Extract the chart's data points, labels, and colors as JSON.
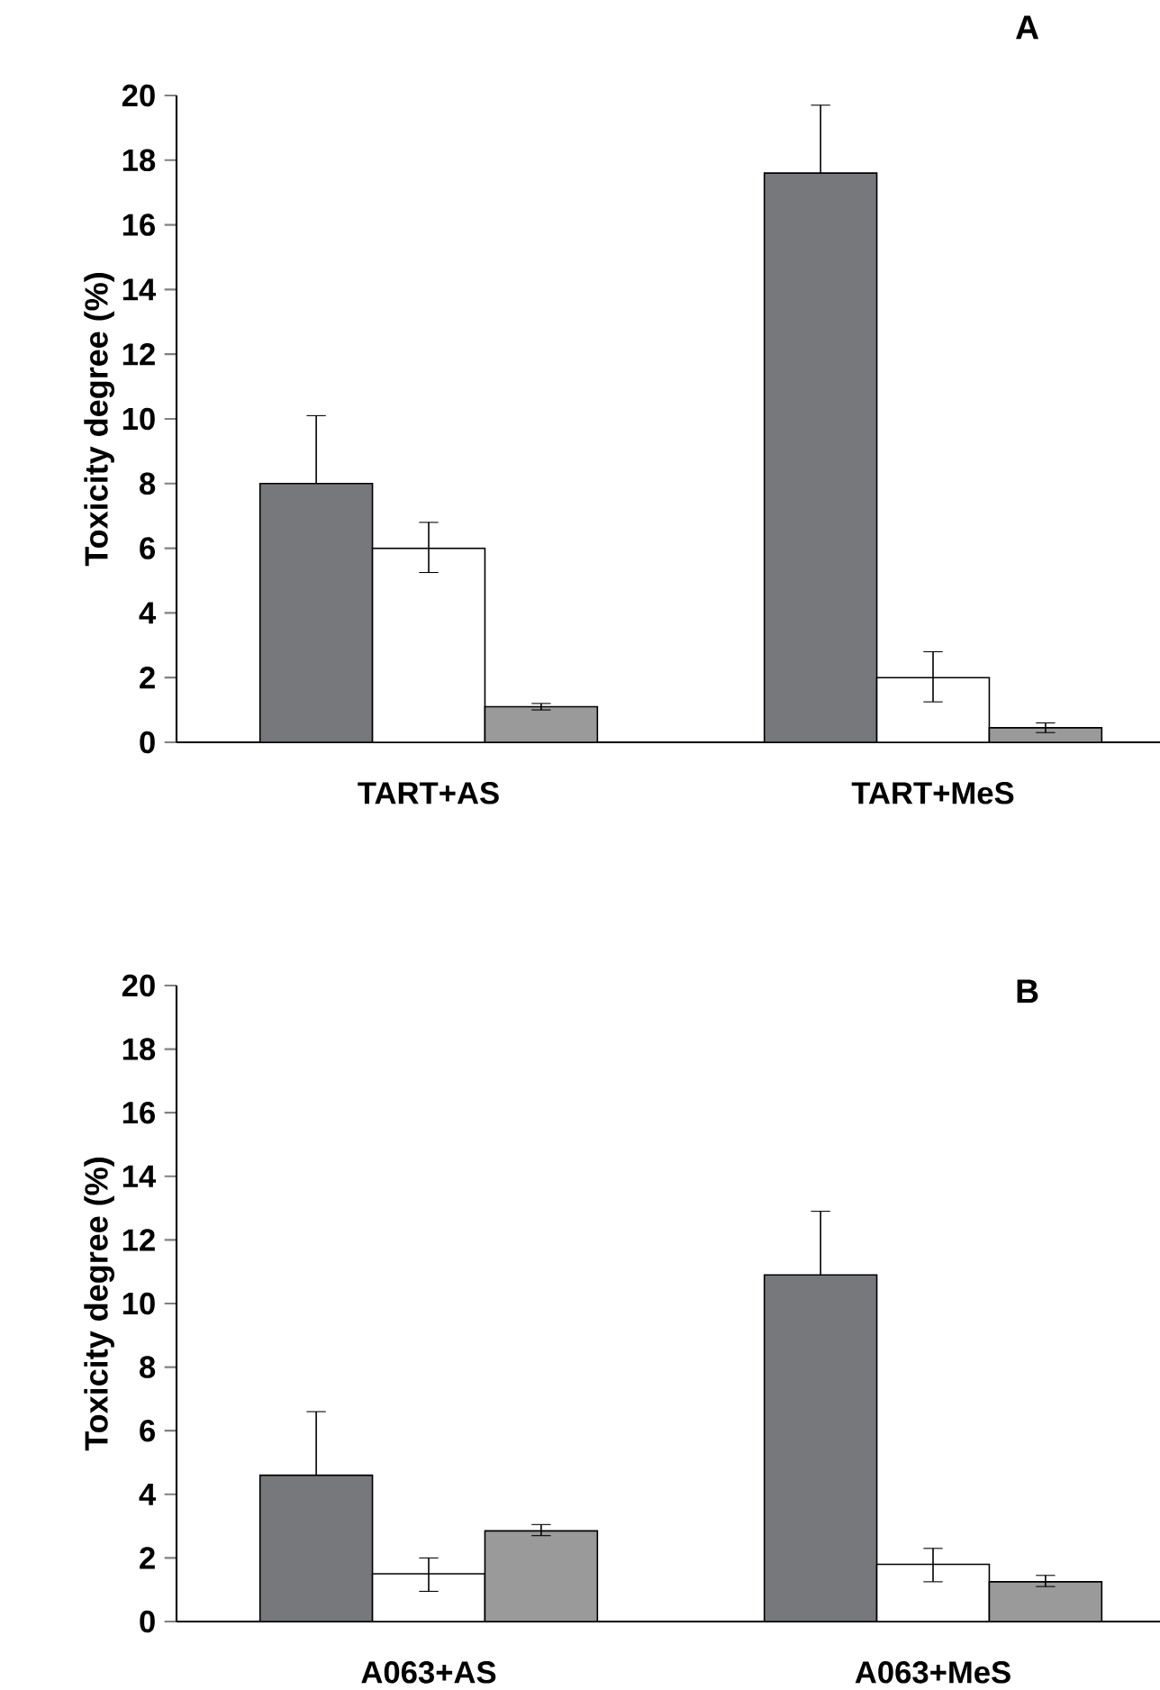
{
  "chart_data": [
    {
      "type": "bar",
      "title": "A",
      "ylabel": "Toxicity degree (%)",
      "categories": [
        "TART+AS",
        "TART+MeS"
      ],
      "ylim": [
        0,
        20
      ],
      "yticks": [
        0,
        2,
        4,
        6,
        8,
        10,
        12,
        14,
        16,
        18,
        20
      ],
      "series": [
        {
          "color": "#77787b",
          "values": [
            8.0,
            17.6
          ],
          "errors": [
            [
              8.0,
              10.1
            ],
            [
              17.6,
              19.7
            ]
          ]
        },
        {
          "color": "#ffffff",
          "values": [
            6.0,
            2.0
          ],
          "errors": [
            [
              5.25,
              6.8
            ],
            [
              1.25,
              2.8
            ]
          ]
        },
        {
          "color": "#9a9a9a",
          "values": [
            1.1,
            0.45
          ],
          "errors": [
            [
              1.0,
              1.2
            ],
            [
              0.3,
              0.6
            ]
          ]
        }
      ]
    },
    {
      "type": "bar",
      "title": "B",
      "ylabel": "Toxicity degree (%)",
      "categories": [
        "A063+AS",
        "A063+MeS"
      ],
      "ylim": [
        0,
        20
      ],
      "yticks": [
        0,
        2,
        4,
        6,
        8,
        10,
        12,
        14,
        16,
        18,
        20
      ],
      "series": [
        {
          "color": "#77787b",
          "values": [
            4.6,
            10.9
          ],
          "errors": [
            [
              4.6,
              6.6
            ],
            [
              10.9,
              12.9
            ]
          ]
        },
        {
          "color": "#ffffff",
          "values": [
            1.5,
            1.8
          ],
          "errors": [
            [
              0.95,
              2.0
            ],
            [
              1.25,
              2.3
            ]
          ]
        },
        {
          "color": "#9a9a9a",
          "values": [
            2.85,
            1.25
          ],
          "errors": [
            [
              2.7,
              3.05
            ],
            [
              1.1,
              1.45
            ]
          ]
        }
      ]
    }
  ]
}
